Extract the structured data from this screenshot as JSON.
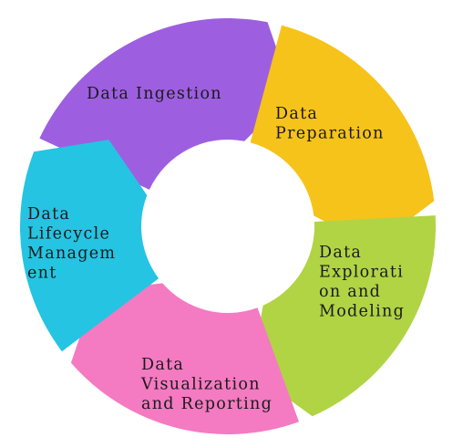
{
  "diagram": {
    "segments": [
      {
        "label_lines": [
          "Data Ingestion"
        ],
        "color": "#9d5fe0"
      },
      {
        "label_lines": [
          "Data",
          "Preparation"
        ],
        "color": "#f6c31b"
      },
      {
        "label_lines": [
          "Data",
          "Explorati",
          "on and",
          "Modeling"
        ],
        "color": "#b1d444"
      },
      {
        "label_lines": [
          "Data",
          "Visualization",
          "and Reporting"
        ],
        "color": "#f47ac2"
      },
      {
        "label_lines": [
          "Data",
          "Lifecycle",
          "Managem",
          "ent"
        ],
        "color": "#25c4e2"
      }
    ]
  }
}
